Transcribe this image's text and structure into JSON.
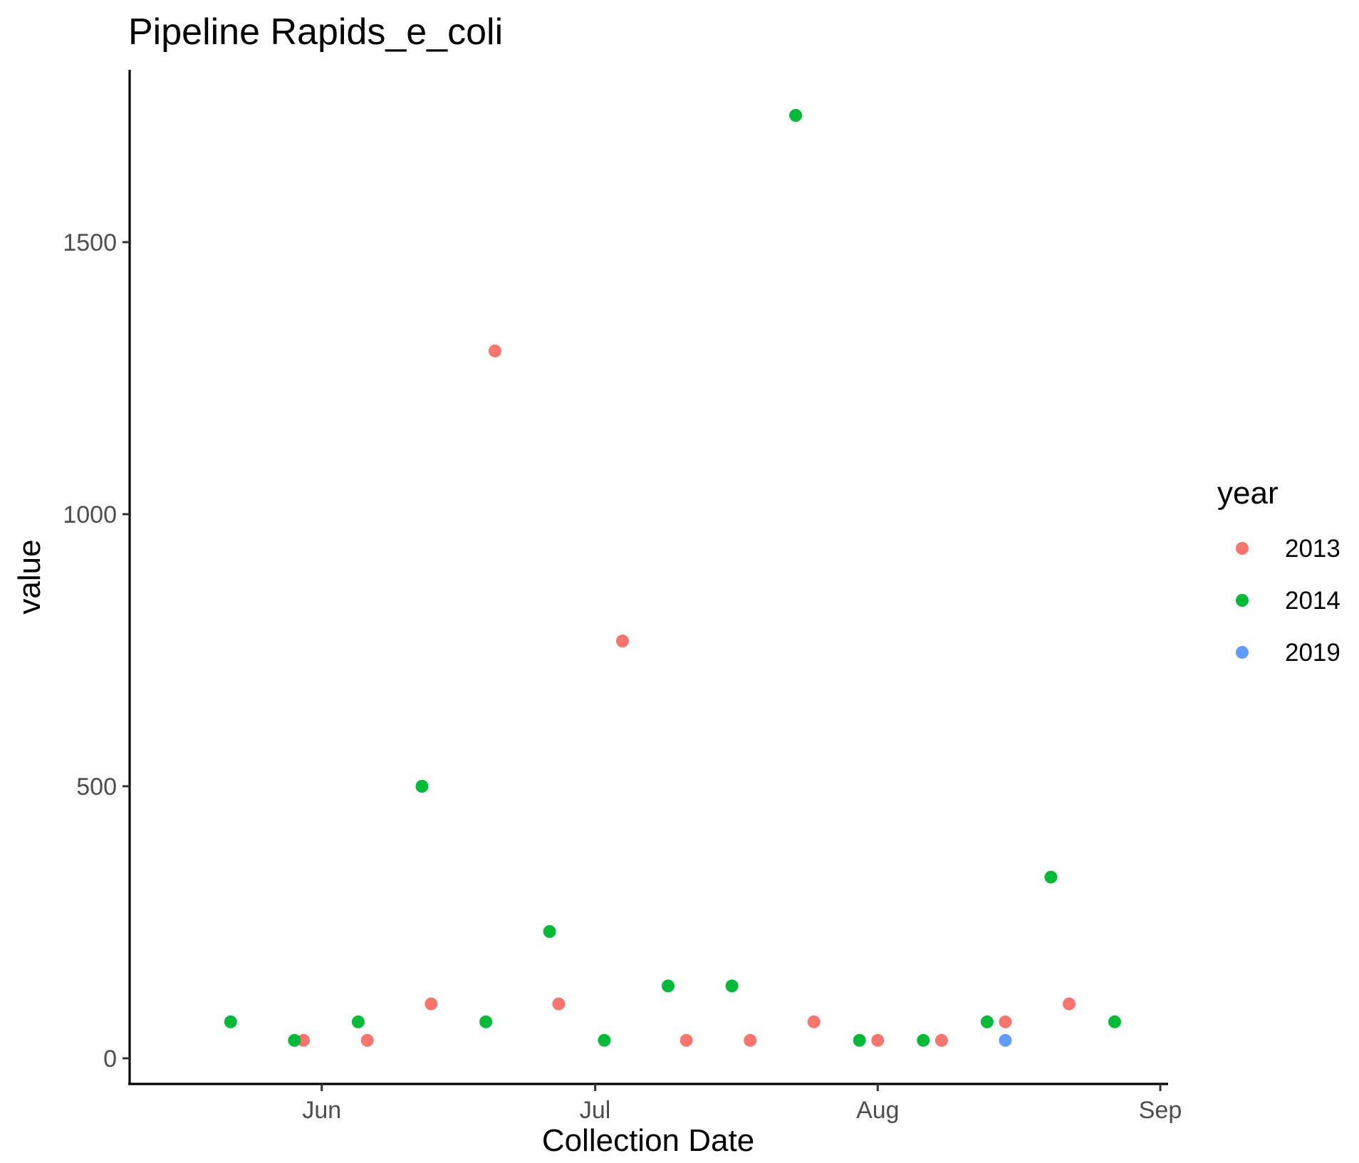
{
  "chart_data": {
    "type": "scatter",
    "title": "Pipeline Rapids_e_coli",
    "xlabel": "Collection Date",
    "ylabel": "value",
    "x_axis_type": "date",
    "xlim": [
      "2000-05-16",
      "2000-09-01"
    ],
    "ylim": [
      -50,
      1750
    ],
    "x_ticks": [
      {
        "label": "Jun",
        "value": "2000-06-01"
      },
      {
        "label": "Jul",
        "value": "2000-07-01"
      },
      {
        "label": "Aug",
        "value": "2000-08-01"
      },
      {
        "label": "Sep",
        "value": "2000-09-01"
      }
    ],
    "y_ticks": [
      0,
      500,
      1000,
      1500
    ],
    "y_tick_labels": [
      "0",
      "500",
      "1000",
      "1500"
    ],
    "grid": false,
    "legend": {
      "title": "year",
      "placement": "right"
    },
    "series": [
      {
        "name": "2013",
        "color": "#F8766D",
        "points": [
          {
            "x": "2000-05-30",
            "y": 33
          },
          {
            "x": "2000-06-06",
            "y": 33
          },
          {
            "x": "2000-06-13",
            "y": 100
          },
          {
            "x": "2000-06-20",
            "y": 1300
          },
          {
            "x": "2000-06-27",
            "y": 100
          },
          {
            "x": "2000-07-04",
            "y": 767
          },
          {
            "x": "2000-07-11",
            "y": 33
          },
          {
            "x": "2000-07-18",
            "y": 33
          },
          {
            "x": "2000-07-25",
            "y": 67
          },
          {
            "x": "2000-08-01",
            "y": 33
          },
          {
            "x": "2000-08-08",
            "y": 33
          },
          {
            "x": "2000-08-15",
            "y": 67
          },
          {
            "x": "2000-08-22",
            "y": 100
          }
        ]
      },
      {
        "name": "2014",
        "color": "#00BA38",
        "points": [
          {
            "x": "2000-05-22",
            "y": 67
          },
          {
            "x": "2000-05-29",
            "y": 33
          },
          {
            "x": "2000-06-05",
            "y": 67
          },
          {
            "x": "2000-06-12",
            "y": 500
          },
          {
            "x": "2000-06-19",
            "y": 67
          },
          {
            "x": "2000-06-26",
            "y": 233
          },
          {
            "x": "2000-07-02",
            "y": 33
          },
          {
            "x": "2000-07-09",
            "y": 133
          },
          {
            "x": "2000-07-16",
            "y": 133
          },
          {
            "x": "2000-07-23",
            "y": 1733
          },
          {
            "x": "2000-07-30",
            "y": 33
          },
          {
            "x": "2000-08-06",
            "y": 33
          },
          {
            "x": "2000-08-13",
            "y": 67
          },
          {
            "x": "2000-08-20",
            "y": 333
          },
          {
            "x": "2000-08-27",
            "y": 67
          }
        ]
      },
      {
        "name": "2019",
        "color": "#619CFF",
        "points": [
          {
            "x": "2000-08-15",
            "y": 33
          }
        ]
      }
    ]
  }
}
